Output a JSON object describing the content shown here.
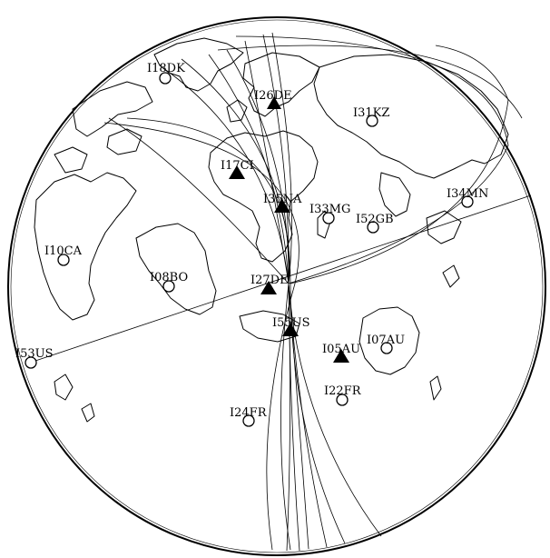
{
  "colors": {
    "ink": "#000000",
    "background": "#ffffff"
  },
  "legend_symbols": {
    "triangle": "filled-triangle",
    "circle": "open-circle"
  },
  "stations": [
    {
      "id": "i18dk",
      "label": "I18DK",
      "symbol": "circle"
    },
    {
      "id": "i26de",
      "label": "I26DE",
      "symbol": "triangle"
    },
    {
      "id": "i31kz",
      "label": "I31KZ",
      "symbol": "circle"
    },
    {
      "id": "i17ci",
      "label": "I17CI",
      "symbol": "triangle"
    },
    {
      "id": "i35na",
      "label": "I35NA",
      "symbol": "triangle"
    },
    {
      "id": "i33mg",
      "label": "I33MG",
      "symbol": "circle"
    },
    {
      "id": "i52gb",
      "label": "I52GB",
      "symbol": "circle"
    },
    {
      "id": "i34mn",
      "label": "I34MN",
      "symbol": "circle"
    },
    {
      "id": "i10ca",
      "label": "I10CA",
      "symbol": "circle"
    },
    {
      "id": "i08bo",
      "label": "I08BO",
      "symbol": "circle"
    },
    {
      "id": "i27de",
      "label": "I27DE",
      "symbol": "triangle"
    },
    {
      "id": "i55us",
      "label": "I55US",
      "symbol": "triangle"
    },
    {
      "id": "i07au",
      "label": "I07AU",
      "symbol": "circle"
    },
    {
      "id": "i05au",
      "label": "I05AU",
      "symbol": "triangle"
    },
    {
      "id": "i53us",
      "label": "I53US",
      "symbol": "circle"
    },
    {
      "id": "i22fr",
      "label": "I22FR",
      "symbol": "circle"
    },
    {
      "id": "i24fr",
      "label": "I24FR",
      "symbol": "circle"
    }
  ]
}
